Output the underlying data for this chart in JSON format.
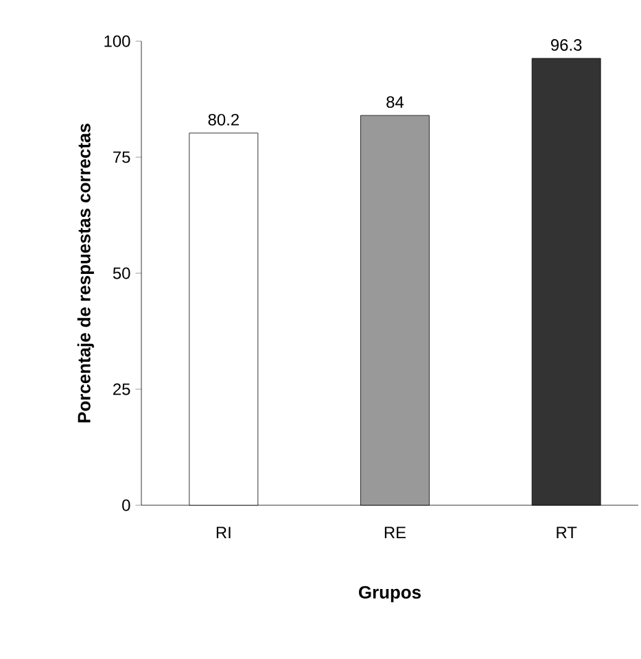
{
  "chart_data": {
    "type": "bar",
    "xlabel": "Grupos",
    "ylabel": "Porcentaje de respuestas correctas",
    "categories": [
      "RI",
      "RE",
      "RT"
    ],
    "values": [
      80.2,
      84,
      96.3
    ],
    "colors": [
      "#ffffff",
      "#999999",
      "#333333"
    ],
    "ylim": [
      0,
      100
    ],
    "yticks": [
      0,
      25,
      50,
      75,
      100
    ],
    "data_labels": true
  }
}
